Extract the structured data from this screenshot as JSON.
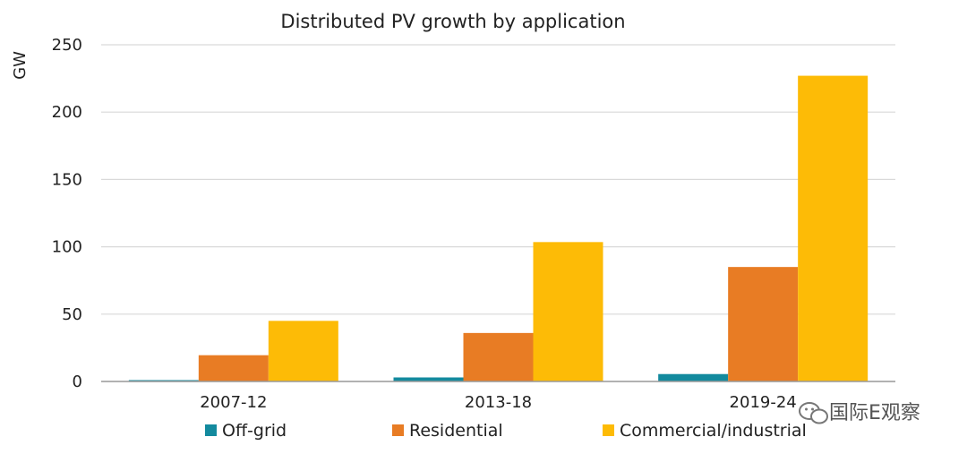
{
  "chart_data": {
    "type": "bar",
    "title": "Distributed PV growth by application",
    "ylabel": "GW",
    "xlabel": "",
    "categories": [
      "2007-12",
      "2013-18",
      "2019-24"
    ],
    "series": [
      {
        "name": "Off-grid",
        "color": "#138a9e",
        "values": [
          1,
          3,
          5.5
        ]
      },
      {
        "name": "Residential",
        "color": "#e87c24",
        "values": [
          19.5,
          36,
          85
        ]
      },
      {
        "name": "Commercial/industrial",
        "color": "#fdbb06",
        "values": [
          45,
          103.5,
          227
        ]
      }
    ],
    "ylim": [
      0,
      250
    ],
    "yticks": [
      0,
      50,
      100,
      150,
      200,
      250
    ],
    "grid": true,
    "legend": "bottom"
  },
  "watermark": {
    "text": "国际E观察",
    "icon": "wechat-icon"
  }
}
